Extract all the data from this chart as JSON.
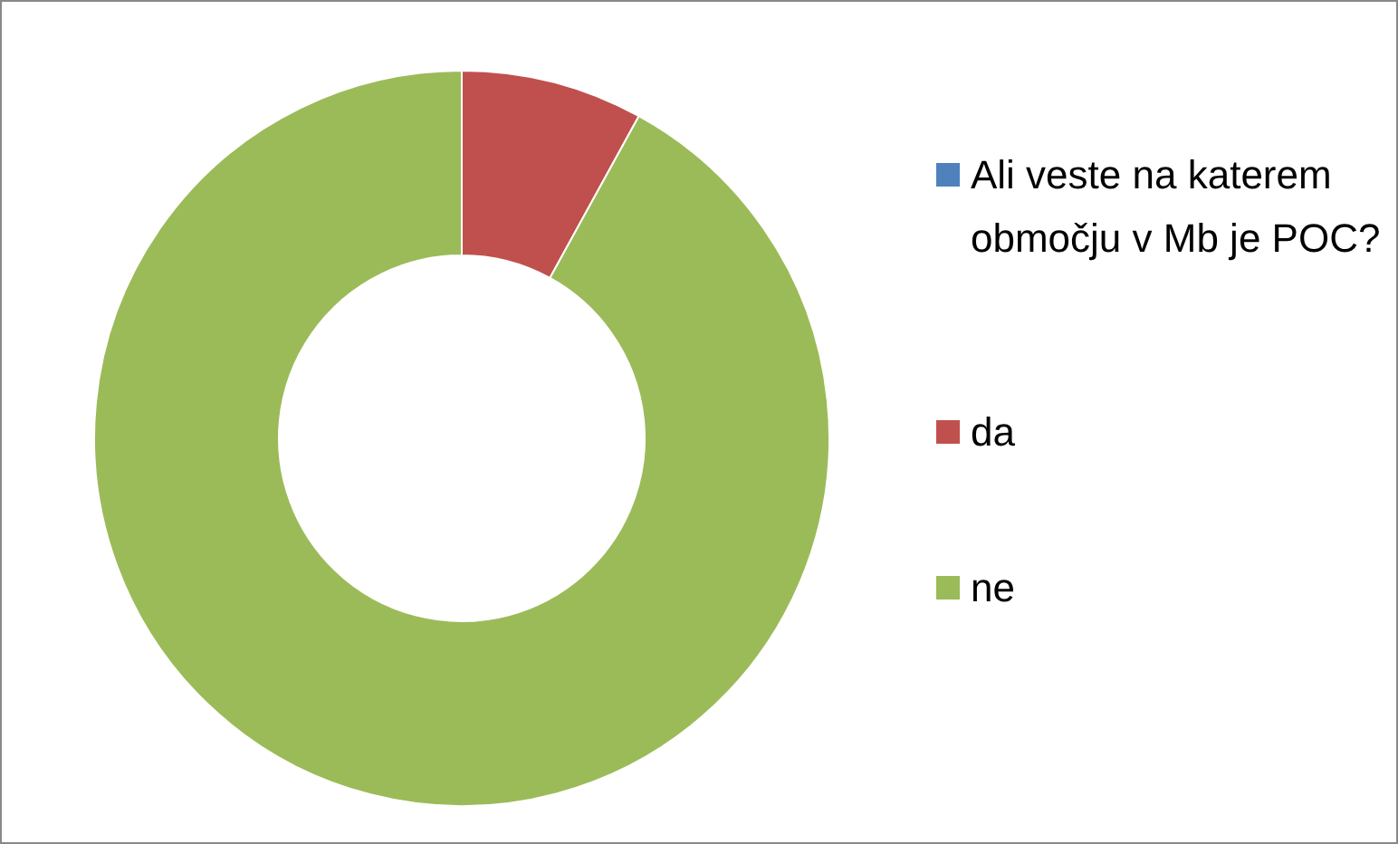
{
  "chart_data": {
    "type": "donut",
    "categories": [
      "Ali veste na katerem območju v Mb je POC?",
      "da",
      "ne"
    ],
    "values": [
      0,
      8,
      92
    ],
    "colors": [
      "#4f81bd",
      "#c0504d",
      "#9bbb59"
    ],
    "legend": "right"
  }
}
